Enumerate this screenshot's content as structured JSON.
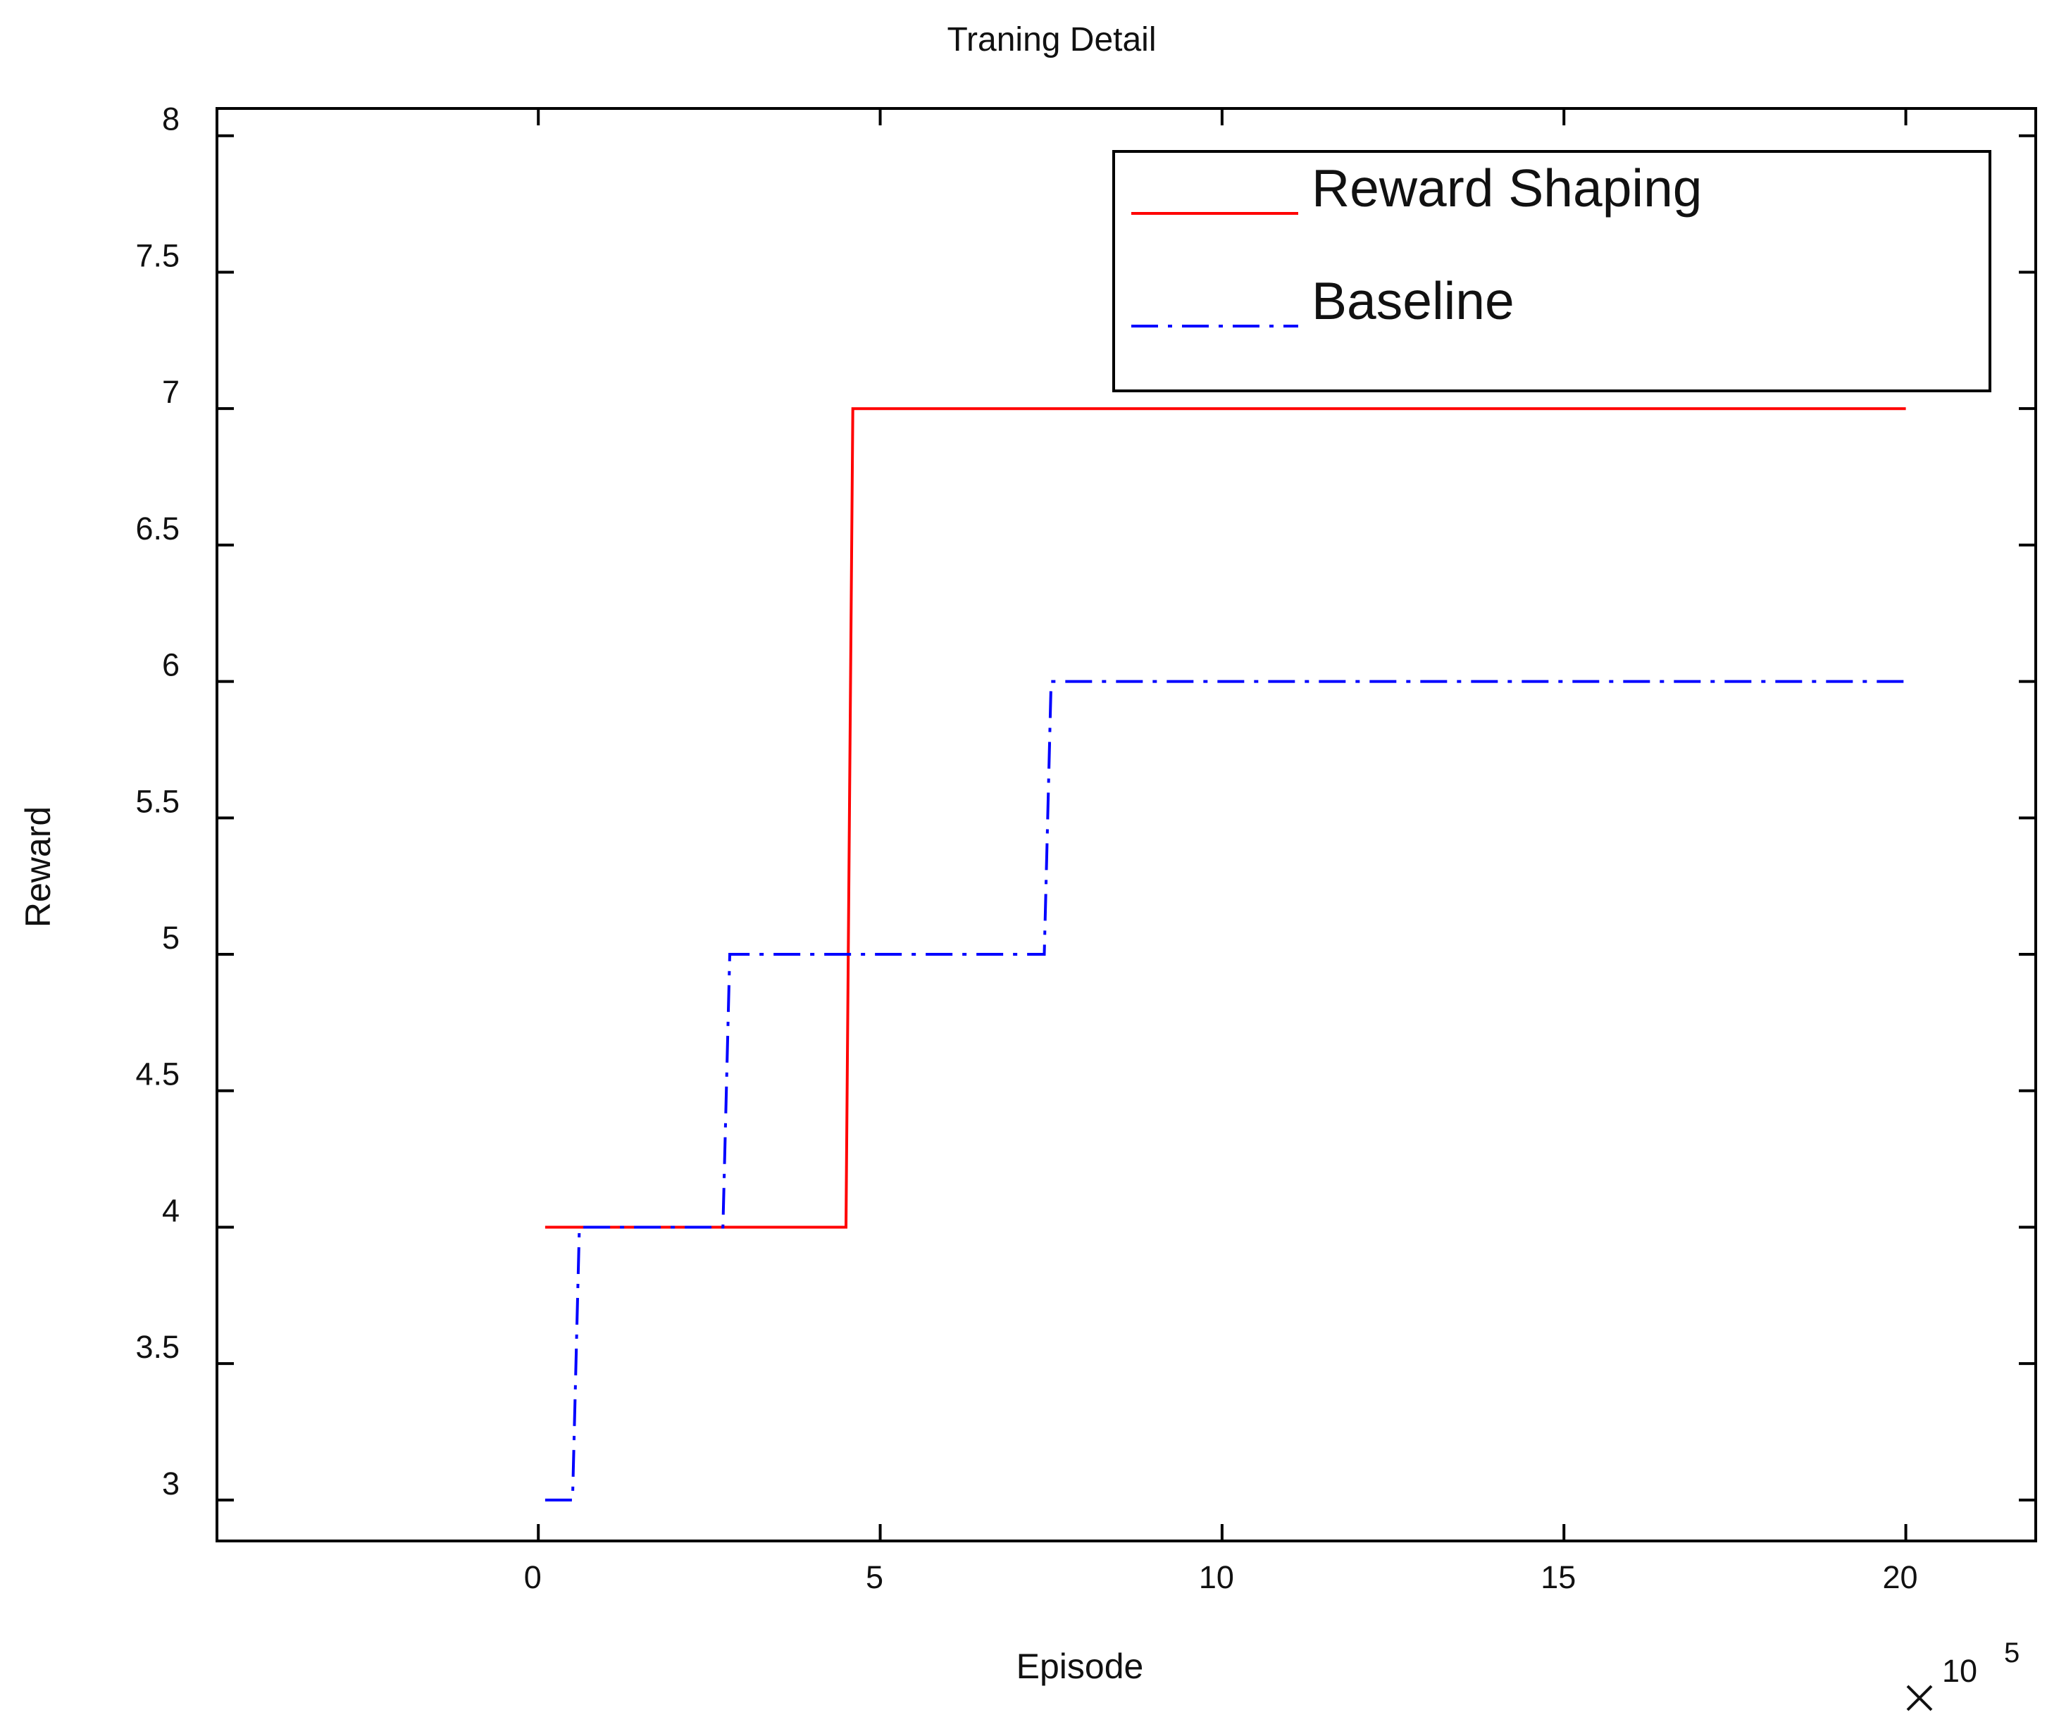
{
  "chart_data": {
    "type": "line",
    "title": "Traning Detail",
    "xlabel": "Episode",
    "ylabel": "Reward",
    "x_multiplier_base": "10",
    "x_multiplier_exponent": "5",
    "xlim": [
      -4.7,
      21.9
    ],
    "ylim": [
      2.85,
      8.1
    ],
    "xticks": [
      0,
      5,
      10,
      15,
      20
    ],
    "xtick_labels": [
      "0",
      "5",
      "10",
      "15",
      "20"
    ],
    "yticks": [
      3,
      3.5,
      4,
      4.5,
      5,
      5.5,
      6,
      6.5,
      7,
      7.5,
      8
    ],
    "ytick_labels": [
      "3",
      "3.5",
      "4",
      "4.5",
      "5",
      "5.5",
      "6",
      "6.5",
      "7",
      "7.5",
      "8"
    ],
    "grid": false,
    "legend_position": "top-right",
    "series": [
      {
        "name": "Reward Shaping",
        "color": "#ff0000",
        "style": "solid",
        "x": [
          0.1,
          4.5,
          4.6,
          20.0
        ],
        "y": [
          4,
          4,
          7,
          7
        ]
      },
      {
        "name": "Baseline",
        "color": "#0000ff",
        "style": "dashdot",
        "x": [
          0.1,
          0.5,
          0.6,
          2.7,
          2.8,
          7.4,
          7.5,
          20.0
        ],
        "y": [
          3,
          3,
          4,
          4,
          5,
          5,
          6,
          6
        ]
      }
    ]
  }
}
